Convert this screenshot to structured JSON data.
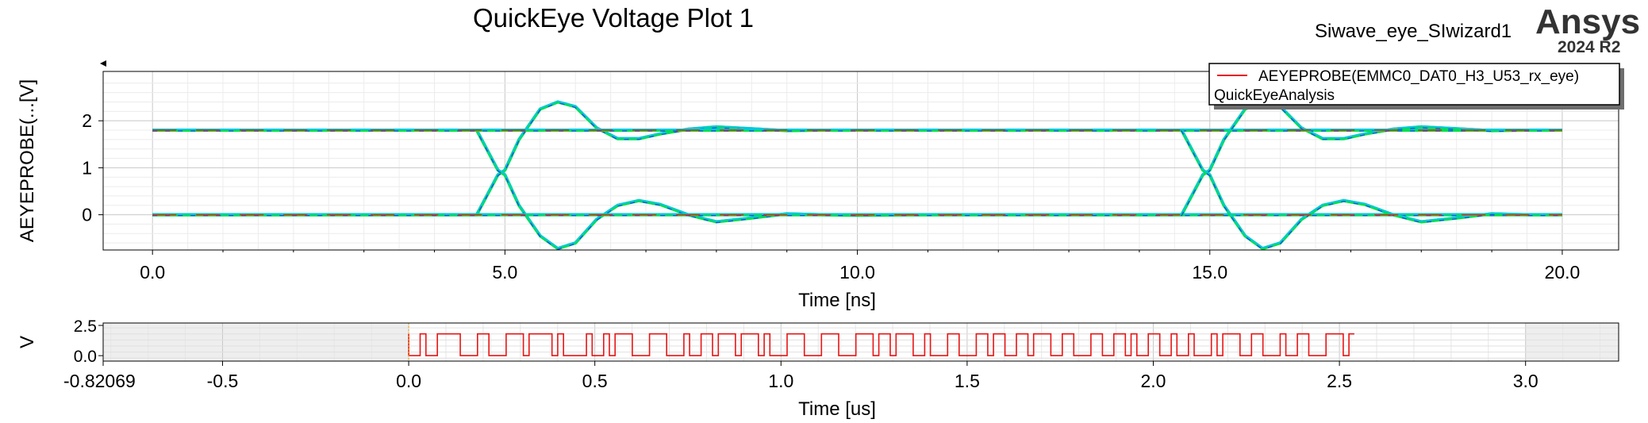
{
  "header": {
    "title": "QuickEye Voltage Plot 1",
    "design_name": "Siwave_eye_SIwizard1",
    "brand": "Ansys",
    "version": "2024 R2"
  },
  "chart_data": [
    {
      "type": "line",
      "name": "eye",
      "xlabel": "Time [ns]",
      "ylabel": "AEYEPROBE(...[V]",
      "xlim": [
        -0.7,
        20.8
      ],
      "ylim": [
        -0.75,
        3.05
      ],
      "xticks": [
        "0.0",
        "5.0",
        "10.0",
        "15.0",
        "20.0"
      ],
      "yticks": [
        "0",
        "1",
        "2"
      ],
      "grid": true,
      "legend": {
        "placement": "top-right",
        "entries": [
          "AEYEPROBE(EMMC0_DAT0_H3_U53_rx_eye)"
        ],
        "subtitle": "QuickEyeAnalysis",
        "color": "#e81515"
      },
      "traces": {
        "high_level": 1.8,
        "low_level": 0.0,
        "transitions_ns": [
          5.0,
          15.0
        ],
        "x": [
          0,
          4.6,
          4.9,
          5.0,
          5.2,
          5.5,
          5.75,
          6.0,
          6.3,
          6.6,
          6.9,
          7.2,
          7.6,
          8.0,
          8.5,
          9.0,
          9.5,
          10.0,
          11.0,
          12.0,
          13.0,
          14.0,
          14.6,
          14.9,
          15.0,
          15.2,
          15.5,
          15.75,
          16.0,
          16.3,
          16.6,
          16.9,
          17.2,
          17.6,
          18.0,
          18.5,
          19.0,
          19.5,
          20.0
        ],
        "rising": [
          0,
          0,
          0.85,
          0.95,
          1.6,
          2.25,
          2.4,
          2.3,
          1.85,
          1.62,
          1.62,
          1.72,
          1.82,
          1.87,
          1.83,
          1.79,
          1.8,
          1.8,
          1.8,
          1.8,
          1.8,
          1.8,
          1.8,
          1.8,
          1.8,
          1.8,
          1.8,
          1.8,
          1.8,
          1.8,
          1.8,
          1.8,
          1.8,
          1.8,
          1.8,
          1.8,
          1.8,
          1.8,
          1.8
        ],
        "falling": [
          1.8,
          1.8,
          0.95,
          0.85,
          0.2,
          -0.45,
          -0.72,
          -0.6,
          -0.1,
          0.2,
          0.3,
          0.22,
          0.0,
          -0.15,
          -0.07,
          0.02,
          0.0,
          -0.01,
          0.0,
          0.0,
          0.0,
          0.0,
          0.0,
          0.0,
          0.0,
          0.0,
          0.0,
          0.0,
          0.0,
          0.0,
          0.0,
          0.0,
          0.0,
          0.0,
          0.0,
          0.0,
          0.0,
          0.0,
          0.0
        ],
        "rising2": [
          0,
          0,
          0,
          0,
          0,
          0,
          0,
          0,
          0,
          0,
          0,
          0,
          0,
          0,
          0,
          0,
          0,
          0,
          0,
          0,
          0,
          0,
          0,
          0.85,
          0.95,
          1.6,
          2.25,
          2.4,
          2.3,
          1.85,
          1.62,
          1.62,
          1.72,
          1.82,
          1.87,
          1.83,
          1.79,
          1.8,
          1.8
        ],
        "falling2": [
          1.8,
          1.8,
          1.8,
          1.8,
          1.8,
          1.8,
          1.8,
          1.8,
          1.8,
          1.8,
          1.8,
          1.8,
          1.8,
          1.8,
          1.8,
          1.8,
          1.8,
          1.8,
          1.8,
          1.8,
          1.8,
          1.8,
          1.8,
          0.95,
          0.85,
          0.2,
          -0.45,
          -0.72,
          -0.6,
          -0.1,
          0.2,
          0.3,
          0.22,
          0.0,
          -0.15,
          -0.07,
          0.02,
          0.0,
          0.0
        ]
      },
      "colors": [
        "#00e040",
        "#00c8e0",
        "#2040ff",
        "#e03000"
      ]
    },
    {
      "type": "line",
      "name": "bitstream",
      "xlabel": "Time [us]",
      "ylabel": "V",
      "xlim": [
        -0.82069,
        3.25
      ],
      "ylim": [
        -0.45,
        2.7
      ],
      "xticks": [
        "-0.82069",
        "-0.5",
        "0.0",
        "0.5",
        "1.0",
        "1.5",
        "2.0",
        "2.5",
        "3.0"
      ],
      "yticks": [
        "2.5",
        "0.0"
      ],
      "grid": true,
      "data_range_us": [
        0.0,
        2.54
      ],
      "levels": [
        0.0,
        1.8
      ],
      "color": "#e81515"
    }
  ]
}
